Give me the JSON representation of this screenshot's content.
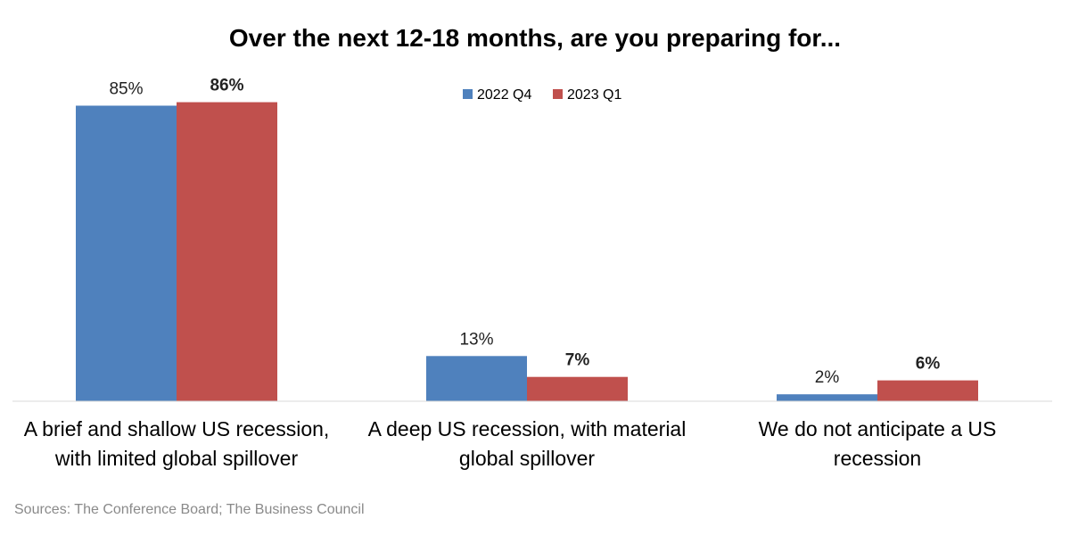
{
  "chart_data": {
    "type": "bar",
    "title": "Over the next 12-18 months, are you preparing for...",
    "categories": [
      [
        "A brief and shallow US recession,",
        "with limited global spillover"
      ],
      [
        "A deep US recession, with material",
        "global spillover"
      ],
      [
        "We do not anticipate a US",
        "recession"
      ]
    ],
    "series": [
      {
        "name": "2022 Q4",
        "color": "#4f81bd",
        "values": [
          85,
          13,
          2
        ],
        "labels": [
          "85%",
          "13%",
          "2%"
        ]
      },
      {
        "name": "2023 Q1",
        "color": "#c0504d",
        "values": [
          86,
          7,
          6
        ],
        "labels": [
          "86%",
          "7%",
          "6%"
        ]
      }
    ],
    "ylim": [
      0,
      100
    ],
    "grid": false,
    "legend_position": "top"
  },
  "source": "Sources: The  Conference Board; The Business Council"
}
